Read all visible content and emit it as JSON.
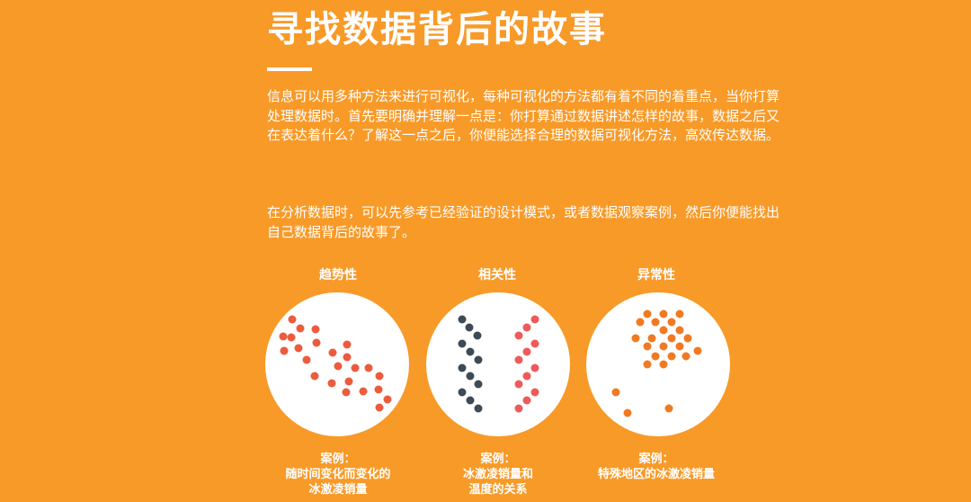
{
  "heading": {
    "title": "寻找数据背后的故事"
  },
  "intro": {
    "paragraph1": "信息可以用多种方法来进行可视化，每种可视化的方法都有着不同的着重点，当你打算处理数据时。首先要明确并理解一点是：你打算通过数据讲述怎样的故事，数据之后又在表达着什么？了解这一点之后，你便能选择合理的数据可视化方法，高效传达数据。",
    "paragraph2": "在分析数据时，可以先参考已经验证的设计模式，或者数据观察案例，然后你便能找出自己数据背后的故事了。"
  },
  "patterns": [
    {
      "title": "趋势性",
      "caption_label": "案例：",
      "caption_line1": "随时间变化而变化的",
      "caption_line2": "冰激凌销量"
    },
    {
      "title": "相关性",
      "caption_label": "案例：",
      "caption_line1": "冰激凌销量和",
      "caption_line2": "温度的关系"
    },
    {
      "title": "异常性",
      "caption_label": "案例：",
      "caption_line1": "特殊地区的冰激凌销量",
      "caption_line2": ""
    }
  ],
  "colors": {
    "background": "#F89A28",
    "circle_fill": "#FFFFFF",
    "trend_dot": "#EC5B3E",
    "correlation_dark_dot": "#3E4A55",
    "correlation_red_dot": "#EF5A5A",
    "outlier_dot": "#F07A22"
  }
}
